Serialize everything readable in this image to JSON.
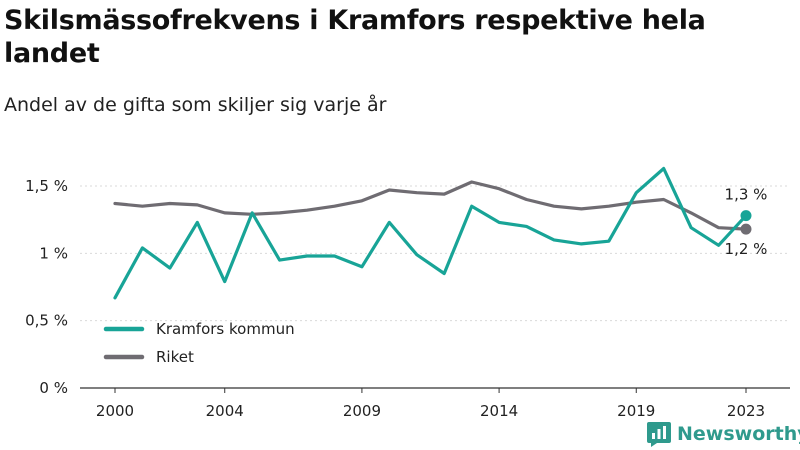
{
  "title": "Skilsmässofrekvens i Kramfors respektive hela landet",
  "subtitle": "Andel av de gifta som skiljer sig varje år",
  "brand": "Newsworthy",
  "chart_data": {
    "type": "line",
    "x": [
      2000,
      2001,
      2002,
      2003,
      2004,
      2005,
      2006,
      2007,
      2008,
      2009,
      2010,
      2011,
      2012,
      2013,
      2014,
      2015,
      2016,
      2017,
      2018,
      2019,
      2020,
      2021,
      2022,
      2023
    ],
    "xticks": [
      2000,
      2004,
      2009,
      2014,
      2019,
      2023
    ],
    "xtick_labels": [
      "2000",
      "2004",
      "2009",
      "2014",
      "2019",
      "2023"
    ],
    "yticks": [
      0,
      0.5,
      1,
      1.5
    ],
    "ytick_labels": [
      "0 %",
      "0,5 %",
      "1 %",
      "1,5 %"
    ],
    "ylim": [
      0,
      1.5
    ],
    "grid": true,
    "legend_position": "bottom-left",
    "series": [
      {
        "name": "Kramfors kommun",
        "color": "#18a497",
        "end_label": "1,3 %",
        "values": [
          0.67,
          1.04,
          0.89,
          1.23,
          0.79,
          1.3,
          0.95,
          0.98,
          0.98,
          0.9,
          1.23,
          0.99,
          0.85,
          1.35,
          1.23,
          1.2,
          1.1,
          1.07,
          1.09,
          1.45,
          1.63,
          1.19,
          1.06,
          1.28
        ]
      },
      {
        "name": "Riket",
        "color": "#6f6c72",
        "end_label": "1,2 %",
        "values": [
          1.37,
          1.35,
          1.37,
          1.36,
          1.3,
          1.29,
          1.3,
          1.32,
          1.35,
          1.39,
          1.47,
          1.45,
          1.44,
          1.53,
          1.48,
          1.4,
          1.35,
          1.33,
          1.35,
          1.38,
          1.4,
          1.3,
          1.19,
          1.18
        ]
      }
    ]
  }
}
